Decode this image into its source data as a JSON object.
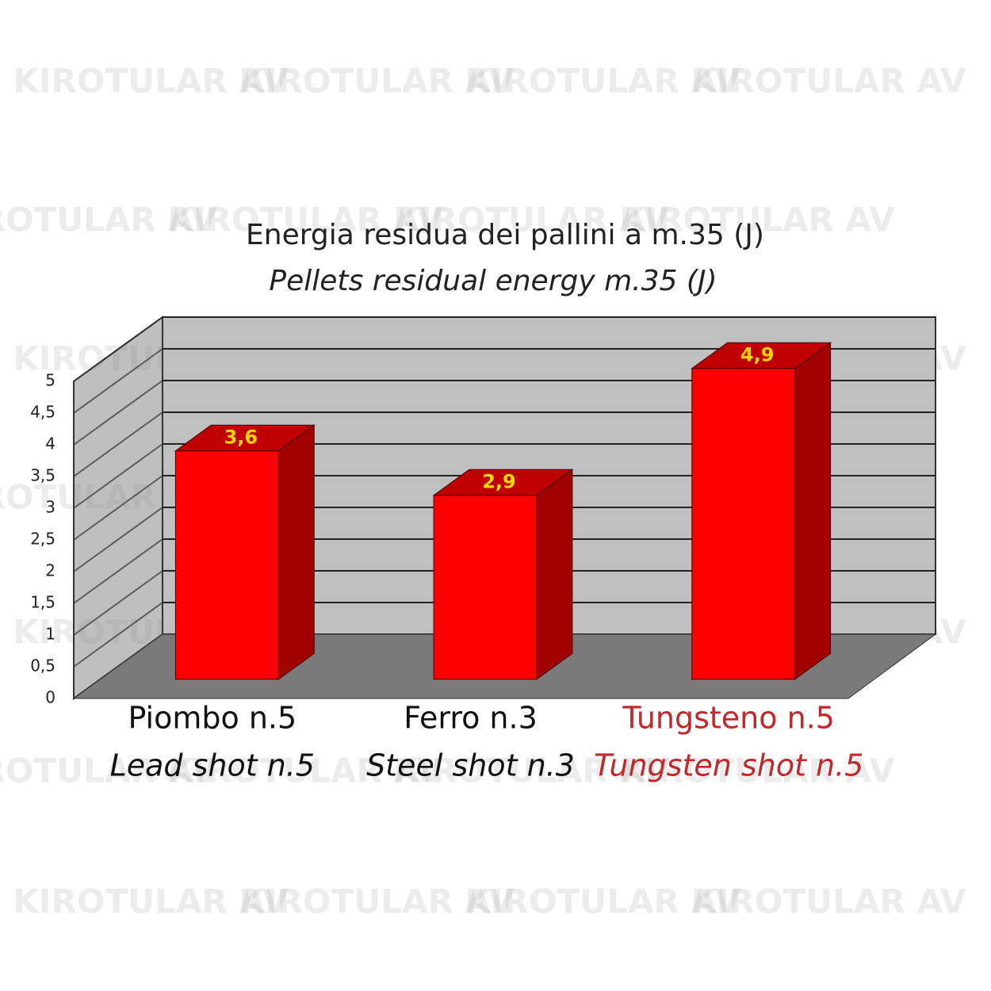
{
  "chart_data": {
    "type": "bar3d",
    "title": "Energia residua dei pallini a m.35 (J)",
    "subtitle": "Pellets residual energy  m.35 (J)",
    "categories": [
      "Piombo n.5",
      "Ferro n.3",
      "Tungsteno n.5"
    ],
    "category_subtitles": [
      "Lead shot n.5",
      "Steel shot n.3",
      "Tungsten shot n.5"
    ],
    "category_colors": [
      "#111111",
      "#111111",
      "#c0282a"
    ],
    "values": [
      3.6,
      2.9,
      4.9
    ],
    "value_labels": [
      "3,6",
      "2,9",
      "4,9"
    ],
    "value_label_color": "#ffd700",
    "color": "#ff0000",
    "ylim": [
      0,
      5
    ],
    "yticks": [
      0,
      {
        "value": 0.5,
        "label": "0,5"
      },
      1,
      {
        "value": 1.5,
        "label": "1,5"
      },
      2,
      {
        "value": 2.5,
        "label": "2,5"
      },
      3,
      {
        "value": 3.5,
        "label": "3,5"
      },
      4,
      {
        "value": 4.5,
        "label": "4,5"
      },
      5
    ],
    "grid": true,
    "watermark": "KIROTULAR AV"
  }
}
